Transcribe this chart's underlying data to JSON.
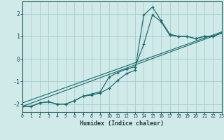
{
  "xlabel": "Humidex (Indice chaleur)",
  "bg_color": "#d0eaea",
  "grid_color": "#a8cccc",
  "line_color": "#1a6a6a",
  "xlim": [
    0,
    23
  ],
  "ylim": [
    -2.35,
    2.55
  ],
  "xticks": [
    0,
    1,
    2,
    3,
    4,
    5,
    6,
    7,
    8,
    9,
    10,
    11,
    12,
    13,
    14,
    15,
    16,
    17,
    18,
    19,
    20,
    21,
    22,
    23
  ],
  "yticks": [
    -2,
    -1,
    0,
    1,
    2
  ],
  "line_spike_x": [
    0,
    1,
    2,
    3,
    4,
    5,
    6,
    7,
    8,
    9,
    10,
    11,
    12,
    13,
    14,
    15,
    16,
    17,
    18,
    19,
    20,
    21,
    22,
    23
  ],
  "line_spike_y": [
    -2.1,
    -2.1,
    -1.95,
    -1.9,
    -2.0,
    -2.0,
    -1.85,
    -1.65,
    -1.6,
    -1.5,
    -1.3,
    -0.95,
    -0.65,
    -0.5,
    1.95,
    2.3,
    1.7,
    1.1,
    1.0,
    1.0,
    0.9,
    1.0,
    1.0,
    1.15
  ],
  "line_smooth_x": [
    0,
    1,
    2,
    3,
    4,
    5,
    6,
    7,
    8,
    9,
    10,
    11,
    12,
    13,
    14,
    15,
    16,
    17,
    18,
    19,
    20,
    21,
    22,
    23
  ],
  "line_smooth_y": [
    -2.1,
    -2.1,
    -1.95,
    -1.9,
    -2.0,
    -2.0,
    -1.85,
    -1.65,
    -1.55,
    -1.45,
    -0.8,
    -0.6,
    -0.45,
    -0.35,
    0.65,
    1.95,
    1.65,
    1.05,
    1.0,
    1.0,
    0.9,
    1.0,
    1.0,
    1.15
  ],
  "linear_a": [
    -2.1,
    1.15
  ],
  "linear_b": [
    -1.95,
    1.2
  ],
  "linear_c": [
    -2.0,
    1.1
  ]
}
